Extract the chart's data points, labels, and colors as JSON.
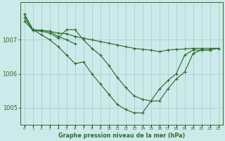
{
  "title": "Graphe pression niveau de la mer (hPa)",
  "bg_color": "#cceaea",
  "grid_color": "#aacfcf",
  "line_color": "#2d6e2d",
  "xlim": [
    -0.5,
    23.5
  ],
  "ylim": [
    1004.5,
    1008.1
  ],
  "yticks": [
    1005,
    1006,
    1007
  ],
  "xticks": [
    0,
    1,
    2,
    3,
    4,
    5,
    6,
    7,
    8,
    9,
    10,
    11,
    12,
    13,
    14,
    15,
    16,
    17,
    18,
    19,
    20,
    21,
    22,
    23
  ],
  "lines": [
    {
      "x": [
        0,
        1,
        2,
        3,
        4,
        5,
        6,
        7,
        8,
        9,
        10,
        11,
        12,
        13,
        14,
        15,
        16,
        17,
        18,
        19,
        20,
        21,
        22,
        23
      ],
      "y": [
        1007.75,
        1007.3,
        1007.15,
        1007.0,
        1006.8,
        1006.55,
        1006.3,
        1006.35,
        1006.0,
        1005.7,
        1005.4,
        1005.1,
        1004.95,
        1004.85,
        1004.85,
        1005.2,
        1005.55,
        1005.8,
        1006.0,
        1006.55,
        1006.7,
        1006.7,
        1006.7,
        null
      ]
    },
    {
      "x": [
        0,
        1,
        2,
        3,
        4,
        5,
        6,
        7,
        8,
        9,
        10,
        11,
        12,
        13,
        14,
        15,
        16,
        17,
        18,
        19,
        20,
        21,
        22,
        23
      ],
      "y": [
        1007.65,
        1007.28,
        1007.25,
        1007.2,
        1007.05,
        1007.3,
        1007.3,
        1007.0,
        1006.75,
        1006.55,
        1006.25,
        1005.9,
        1005.6,
        1005.35,
        1005.25,
        1005.2,
        1005.2,
        1005.55,
        1005.85,
        1006.05,
        1006.6,
        1006.7,
        1006.7,
        1006.75
      ]
    },
    {
      "x": [
        0,
        1,
        2,
        3,
        4,
        5,
        6,
        7,
        8,
        9,
        10,
        11,
        12,
        13,
        14,
        15,
        16,
        17,
        18,
        19,
        20,
        21,
        22,
        23
      ],
      "y": [
        1007.55,
        1007.28,
        1007.28,
        1007.25,
        1007.2,
        1007.18,
        1007.1,
        1007.05,
        1007.0,
        1006.95,
        1006.9,
        1006.85,
        1006.8,
        1006.75,
        1006.72,
        1006.7,
        1006.65,
        1006.7,
        1006.72,
        1006.73,
        1006.75,
        1006.75,
        1006.75,
        1006.75
      ]
    },
    {
      "x": [
        0,
        1,
        2,
        3,
        4,
        5,
        6
      ],
      "y": [
        1007.75,
        1007.3,
        1007.28,
        1007.25,
        1007.1,
        1007.0,
        1006.88
      ]
    }
  ]
}
